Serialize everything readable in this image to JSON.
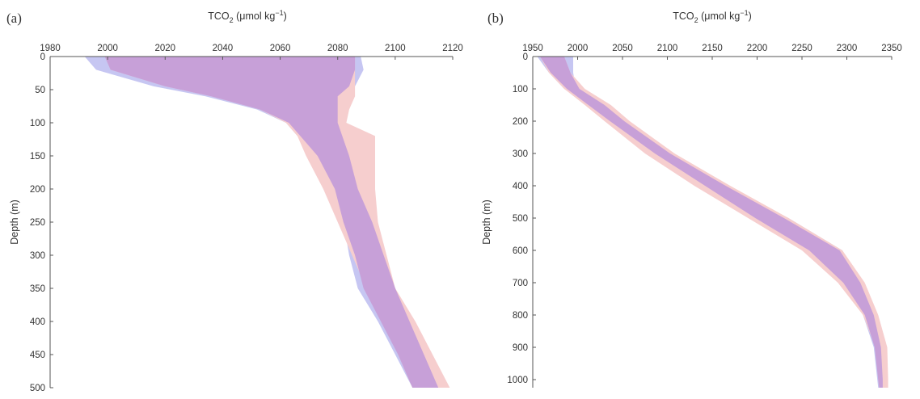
{
  "chart_data": [
    {
      "panel_label": "(a)",
      "type": "area",
      "xlabel_main": "TCO",
      "xlabel_sub": "2",
      "xlabel_rest": " (μmol kg",
      "xlabel_sup": "−1",
      "xlabel_close": ")",
      "ylabel": "Depth (m)",
      "xlim": [
        1980,
        2120
      ],
      "ylim": [
        0,
        500
      ],
      "x_ticks": [
        1980,
        2000,
        2020,
        2040,
        2060,
        2080,
        2100,
        2120
      ],
      "y_ticks": [
        0,
        50,
        100,
        150,
        200,
        250,
        300,
        350,
        400,
        450,
        500
      ],
      "x_axis_position": "top",
      "y_axis_reversed": true,
      "grid": false,
      "series": [
        {
          "color": "#c6c6f2",
          "depth": [
            0,
            20,
            45,
            60,
            80,
            100,
            150,
            200,
            250,
            300,
            350,
            400,
            450,
            500
          ],
          "lower": [
            1992,
            1996,
            2016,
            2034,
            2052,
            2062,
            2072,
            2078,
            2082,
            2084,
            2087,
            2094,
            2100,
            2106
          ],
          "upper": [
            2088,
            2089,
            2086,
            2080,
            2080,
            2080,
            2084,
            2087,
            2092,
            2096,
            2100,
            2105,
            2110,
            2116
          ]
        },
        {
          "color": "#f6cece",
          "depth": [
            0,
            20,
            45,
            60,
            80,
            100,
            120,
            150,
            200,
            250,
            300,
            350,
            400,
            450,
            500
          ],
          "lower": [
            1999,
            2001,
            2020,
            2036,
            2053,
            2062,
            2066,
            2069,
            2075,
            2080,
            2085,
            2090,
            2096,
            2101,
            2106
          ],
          "upper": [
            2086,
            2086,
            2086,
            2086,
            2084,
            2083,
            2093,
            2093,
            2093,
            2094,
            2097,
            2100,
            2107,
            2113,
            2119
          ]
        },
        {
          "color": "#c7a0d8",
          "depth": [
            0,
            20,
            45,
            60,
            80,
            100,
            150,
            200,
            250,
            300,
            350,
            400,
            450,
            500
          ],
          "lower": [
            1999,
            2001,
            2020,
            2036,
            2053,
            2063,
            2073,
            2079,
            2082,
            2086,
            2089,
            2095,
            2101,
            2106
          ],
          "upper": [
            2086,
            2086,
            2084,
            2080,
            2080,
            2080,
            2084,
            2087,
            2092,
            2096,
            2100,
            2105,
            2110,
            2115
          ]
        }
      ]
    },
    {
      "panel_label": "(b)",
      "type": "area",
      "xlabel_main": "TCO",
      "xlabel_sub": "2",
      "xlabel_rest": " (μmol kg",
      "xlabel_sup": "−1",
      "xlabel_close": ")",
      "ylabel": "Depth (m)",
      "xlim": [
        1950,
        2350
      ],
      "ylim": [
        0,
        1025
      ],
      "x_ticks": [
        1950,
        2000,
        2050,
        2100,
        2150,
        2200,
        2250,
        2300,
        2350
      ],
      "y_ticks": [
        0,
        100,
        200,
        300,
        400,
        500,
        600,
        700,
        800,
        900,
        1000
      ],
      "x_axis_position": "top",
      "y_axis_reversed": true,
      "grid": false,
      "series": [
        {
          "color": "#c6c6f2",
          "depth": [
            0,
            50,
            100,
            150,
            200,
            300,
            400,
            500,
            600,
            700,
            800,
            900,
            1000,
            1025
          ],
          "lower": [
            1955,
            1968,
            1985,
            2010,
            2035,
            2085,
            2140,
            2195,
            2255,
            2295,
            2318,
            2330,
            2334,
            2335
          ],
          "upper": [
            1995,
            1995,
            1998,
            2025,
            2050,
            2103,
            2165,
            2235,
            2295,
            2315,
            2329,
            2337,
            2340,
            2340
          ]
        },
        {
          "color": "#f6cece",
          "depth": [
            0,
            50,
            100,
            150,
            200,
            300,
            400,
            500,
            600,
            700,
            800,
            900,
            1000,
            1025
          ],
          "lower": [
            1958,
            1968,
            1985,
            2008,
            2030,
            2075,
            2130,
            2190,
            2250,
            2290,
            2318,
            2332,
            2335,
            2336
          ],
          "upper": [
            1985,
            1992,
            2008,
            2037,
            2058,
            2108,
            2170,
            2235,
            2295,
            2320,
            2335,
            2345,
            2346,
            2346
          ]
        },
        {
          "color": "#c7a0d8",
          "depth": [
            0,
            50,
            100,
            150,
            200,
            300,
            400,
            500,
            600,
            700,
            800,
            900,
            1000,
            1025
          ],
          "lower": [
            1958,
            1970,
            1988,
            2012,
            2036,
            2086,
            2142,
            2198,
            2258,
            2296,
            2320,
            2331,
            2335,
            2336
          ],
          "upper": [
            1985,
            1992,
            2002,
            2030,
            2052,
            2103,
            2165,
            2230,
            2292,
            2315,
            2330,
            2338,
            2340,
            2340
          ]
        }
      ]
    }
  ]
}
